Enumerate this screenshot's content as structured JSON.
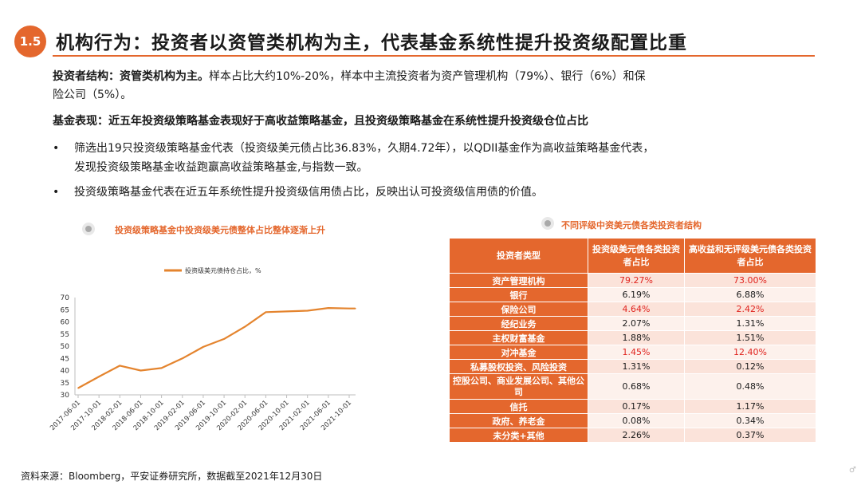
{
  "header": {
    "badge": "1.5",
    "title": "机构行为：投资者以资管类机构为主，代表基金系统性提升投资级配置比重"
  },
  "structure": {
    "label": "投资者结构：资管类机构为主。",
    "line1": "样本占比大约10%-20%，样本中主流投资者为资产管理机构（79%）、银行（6%）和保",
    "line2": "险公司（5%）。"
  },
  "performance": {
    "heading": "基金表现：近五年投资级策略基金表现好于高收益策略基金，且投资级策略基金在系统性提升投资级仓位占比"
  },
  "bullets": [
    {
      "dot": "•",
      "line1": "筛选出19只投资级策略基金代表（投资级美元债占比36.83%，久期4.72年），以QDII基金作为高收益策略基金代表，",
      "line2": "发现投资级策略基金收益跑赢高收益策略基金,与指数一致。"
    },
    {
      "dot": "•",
      "line1": "投资级策略基金代表在近五年系统性提升投资级信用债占比，反映出认可投资级信用债的价值。"
    }
  ],
  "chart_title": "投资级策略基金中投资级美元债整体占比整体逐渐上升",
  "chart_data": {
    "type": "line",
    "title": "投资级策略基金中投资级美元债整体占比整体逐渐上升",
    "legend": "投资级美元债持仓占比，%",
    "legend_position": "top",
    "categories": [
      "2017-06-01",
      "2017-10-01",
      "2018-02-01",
      "2018-06-01",
      "2018-10-01",
      "2019-02-01",
      "2019-06-01",
      "2019-10-01",
      "2020-02-01",
      "2020-06-01",
      "2020-10-01",
      "2021-02-01",
      "2021-06-01",
      "2021-10-01"
    ],
    "series": [
      {
        "name": "投资级美元债持仓占比，%",
        "x": [
          0,
          1,
          2,
          3,
          4,
          5,
          6,
          7,
          8,
          9,
          10,
          11,
          12,
          13,
          13.3
        ],
        "values": [
          32.8,
          37.5,
          42.0,
          40.0,
          41.0,
          45.0,
          49.7,
          53.0,
          58.0,
          64.0,
          64.3,
          64.6,
          65.7,
          65.5,
          65.5
        ],
        "color": "#e4842e"
      }
    ],
    "ylim": [
      30,
      70
    ],
    "yticks": [
      30,
      35,
      40,
      45,
      50,
      55,
      60,
      65,
      70
    ],
    "grid": false
  },
  "table": {
    "title": "不同评级中资美元债各类投资者结构",
    "headers": [
      "投资者类型",
      "投资级美元债各类投资者占比",
      "高收益和无评级美元债各类投资者占比"
    ],
    "rows": [
      {
        "type": "资产管理机构",
        "ig": "79.27%",
        "hy": "73.00%",
        "red": true
      },
      {
        "type": "银行",
        "ig": "6.19%",
        "hy": "6.88%",
        "red": false
      },
      {
        "type": "保险公司",
        "ig": "4.64%",
        "hy": "2.42%",
        "red": true
      },
      {
        "type": "经纪业务",
        "ig": "2.07%",
        "hy": "1.31%",
        "red": false
      },
      {
        "type": "主权财富基金",
        "ig": "1.88%",
        "hy": "1.51%",
        "red": false
      },
      {
        "type": "对冲基金",
        "ig": "1.45%",
        "hy": "12.40%",
        "red": true
      },
      {
        "type": "私募股权投资、风险投资",
        "ig": "1.31%",
        "hy": "0.12%",
        "red": false
      },
      {
        "type": "控股公司、商业发展公司、其他公司",
        "ig": "0.68%",
        "hy": "0.48%",
        "red": false
      },
      {
        "type": "信托",
        "ig": "0.17%",
        "hy": "1.17%",
        "red": false
      },
      {
        "type": "政府、养老金",
        "ig": "0.08%",
        "hy": "0.34%",
        "red": false
      },
      {
        "type": "未分类+其他",
        "ig": "2.26%",
        "hy": "0.37%",
        "red": false
      }
    ]
  },
  "source": "资料来源：Bloomberg，平安证券研究所，数据截至2021年12月30日",
  "corner_glyph": "♂",
  "colors": {
    "accent": "#e4672d",
    "line": "#e4842e",
    "red_text": "#e0231e"
  }
}
